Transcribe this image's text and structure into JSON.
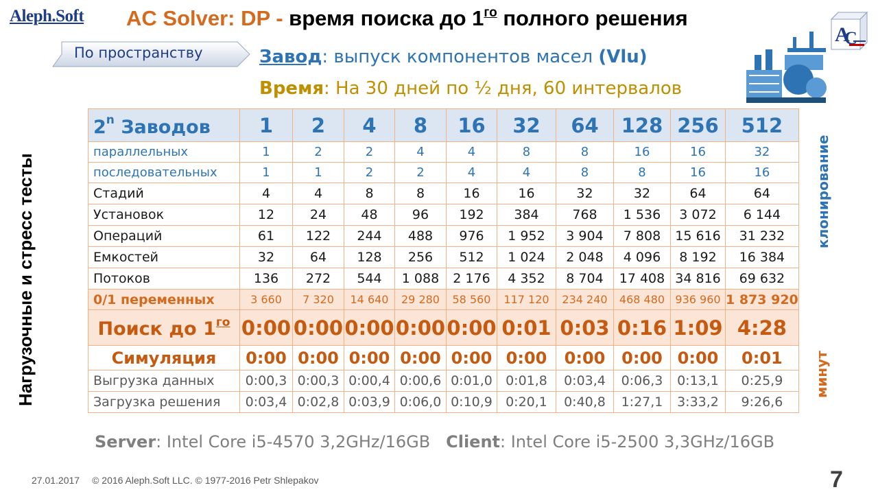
{
  "logo": "Aleph.Soft",
  "title": {
    "part1": "AC Solver: DP - ",
    "part2": "время поиска до 1",
    "sup": "го",
    "part3": " полного решения"
  },
  "ac_icon": "ac-logo-cube",
  "nav_button": "По пространству",
  "info": {
    "plant_key": "Завод",
    "plant_text": ":  выпуск компонентов масел ",
    "plant_bold": "(Vlu)",
    "time_key": "Время",
    "time_text": ": На 30 дней по ½ дня, 60 интервалов"
  },
  "factory_icon": "factory-icon",
  "side_left": "Нагрузочные и стресс тесты",
  "side_right_top": "клонирование",
  "side_right_bottom": "минут",
  "table": {
    "header_label": "Заводов",
    "header_base": "2",
    "header_exp": "n",
    "columns": [
      "1",
      "2",
      "4",
      "8",
      "16",
      "32",
      "64",
      "128",
      "256",
      "512"
    ],
    "rows": [
      {
        "label": "параллельных",
        "style": "blue",
        "values": [
          "1",
          "2",
          "2",
          "4",
          "4",
          "8",
          "8",
          "16",
          "16",
          "32"
        ]
      },
      {
        "label": "последовательных",
        "style": "blue",
        "values": [
          "1",
          "1",
          "2",
          "2",
          "4",
          "4",
          "8",
          "8",
          "16",
          "16"
        ]
      },
      {
        "label": "Стадий",
        "style": "norm",
        "values": [
          "4",
          "4",
          "8",
          "8",
          "16",
          "16",
          "32",
          "32",
          "64",
          "64"
        ]
      },
      {
        "label": "Установок",
        "style": "norm",
        "values": [
          "12",
          "24",
          "48",
          "96",
          "192",
          "384",
          "768",
          "1 536",
          "3 072",
          "6 144"
        ]
      },
      {
        "label": "Операций",
        "style": "norm",
        "values": [
          "61",
          "122",
          "244",
          "488",
          "976",
          "1 952",
          "3 904",
          "7 808",
          "15 616",
          "31 232"
        ]
      },
      {
        "label": "Емкостей",
        "style": "norm",
        "values": [
          "32",
          "64",
          "128",
          "256",
          "512",
          "1 024",
          "2 048",
          "4 096",
          "8 192",
          "16 384"
        ]
      },
      {
        "label": "Потоков",
        "style": "norm",
        "values": [
          "136",
          "272",
          "544",
          "1 088",
          "2 176",
          "4 352",
          "8 704",
          "17 408",
          "34 816",
          "69 632"
        ]
      }
    ],
    "vars_row": {
      "label": "0/1 переменных",
      "values": [
        "3 660",
        "7 320",
        "14 640",
        "29 280",
        "58 560",
        "117 120",
        "234 240",
        "468 480",
        "936 960",
        "1 873 920"
      ]
    },
    "search_row": {
      "label": "Поиск до 1",
      "label_sup": "го",
      "values": [
        "0:00",
        "0:00",
        "0:00",
        "0:00",
        "0:00",
        "0:01",
        "0:03",
        "0:16",
        "1:09",
        "4:28"
      ]
    },
    "sim_row": {
      "label": "Симуляция",
      "values": [
        "0:00",
        "0:00",
        "0:00",
        "0:00",
        "0:00",
        "0:00",
        "0:00",
        "0:00",
        "0:00",
        "0:01"
      ]
    },
    "gray_rows": [
      {
        "label": "Выгрузка данных",
        "values": [
          "0:00,3",
          "0:00,3",
          "0:00,4",
          "0:00,6",
          "0:01,0",
          "0:01,8",
          "0:03,4",
          "0:06,3",
          "0:13,1",
          "0:25,9"
        ]
      },
      {
        "label": "Загрузка решения",
        "values": [
          "0:03,4",
          "0:02,8",
          "0:03,9",
          "0:06,0",
          "0:10,9",
          "0:20,1",
          "0:40,8",
          "1:27,1",
          "3:33,2",
          "9:26,6"
        ]
      }
    ]
  },
  "specs": {
    "server_key": "Server",
    "server_text": ": Intel Core i5-4570 3,2GHz/16GB",
    "client_key": "Client",
    "client_text": ": Intel Core i5-2500 3,3GHz/16GB"
  },
  "footer": {
    "date": "27.01.2017",
    "copyright": "© 2016 Aleph.Soft LLC.  © 1977-2016 Petr Shlepakov"
  },
  "page_number": "7",
  "colors": {
    "accent_orange": "#d46a1e",
    "accent_blue": "#2e74b5",
    "accent_gold": "#bf8f00",
    "grid_line": "#f4b183",
    "header_fill": "#dce6f2",
    "highlight_fill": "#fbe5d6"
  }
}
